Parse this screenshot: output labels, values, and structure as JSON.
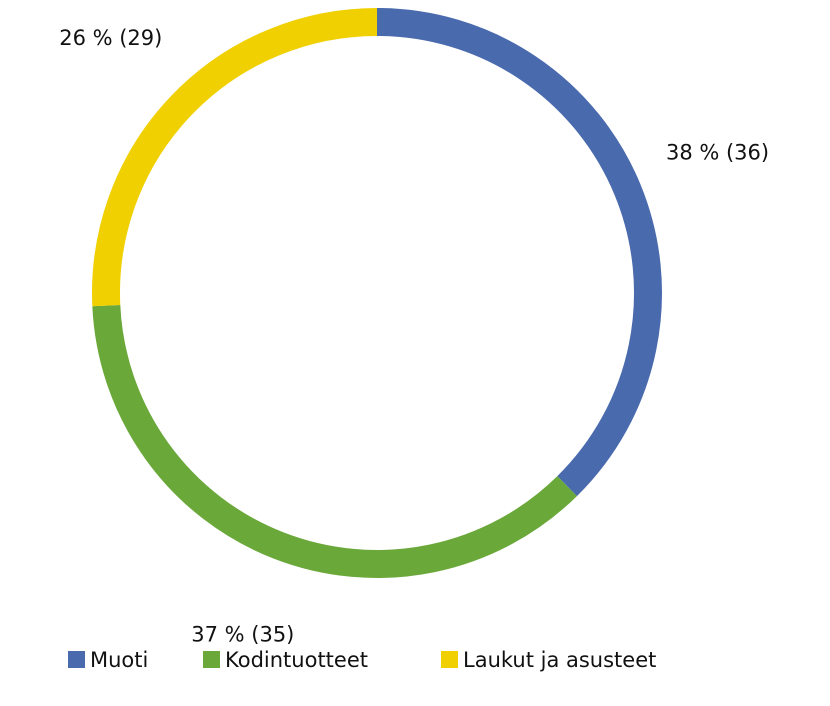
{
  "chart_data": {
    "type": "donut",
    "categories": [
      "Muoti",
      "Kodintuotteet",
      "Laukut ja asusteet"
    ],
    "values": [
      38,
      37,
      26
    ],
    "value_labels": [
      "38 % (36)",
      "37 % (35)",
      "26 % (29)"
    ],
    "colors": [
      "#4a6aae",
      "#6aa83a",
      "#f0d000"
    ],
    "legend": "bottom"
  }
}
